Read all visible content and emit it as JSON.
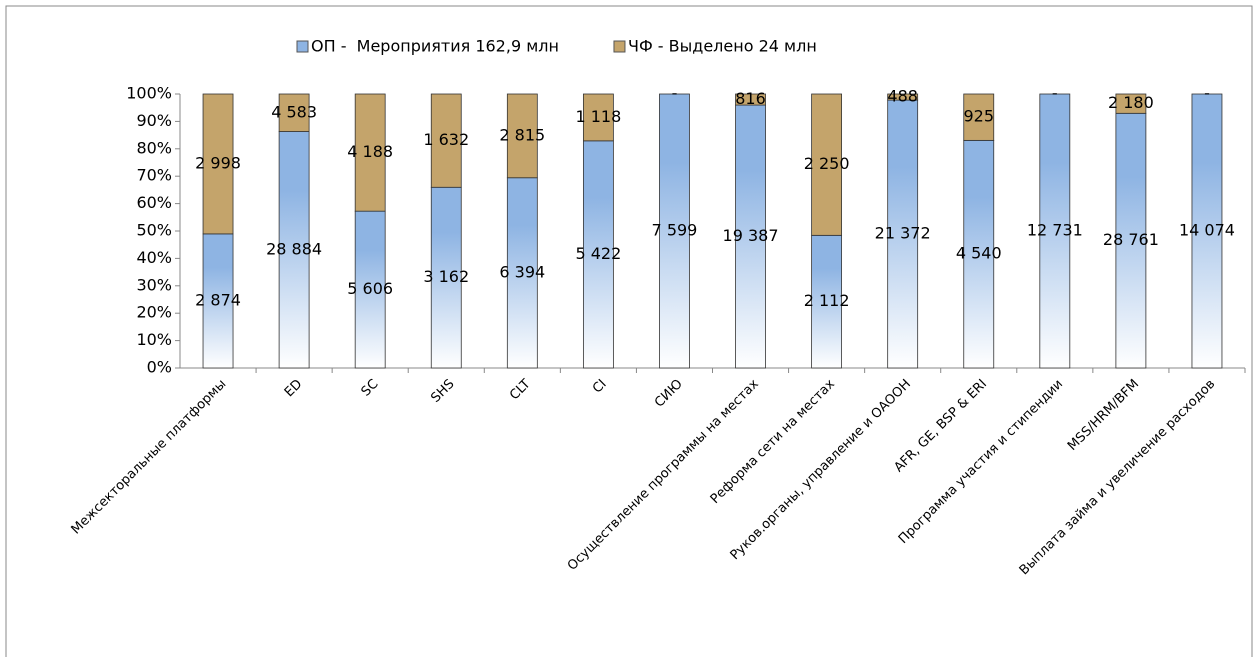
{
  "chart_data": {
    "type": "bar",
    "stacking": "percent",
    "categories": [
      "Межсекторальные платформы",
      "ED",
      "SC",
      "SHS",
      "CLT",
      "CI",
      "СИЮ",
      "Осуществление программы на местах",
      "Реформа сети на местах",
      "Руков.органы, управление и ОАООН",
      "AFR, GE, BSP & ERI",
      "Программа участия и стипендии",
      "MSS/HRM/BFM",
      "Выплата займа и увеличение расходов"
    ],
    "series": [
      {
        "name": "ОП -  Мероприятия 162,9 млн",
        "color": "#8eb4e3",
        "values": [
          2874,
          28884,
          5606,
          3162,
          6394,
          5422,
          7599,
          19387,
          2112,
          21372,
          4540,
          12731,
          28761,
          14074
        ],
        "value_labels": [
          "2 874",
          "28 884",
          "5 606",
          "3 162",
          "6 394",
          "5 422",
          "7 599",
          "19 387",
          "2 112",
          "21 372",
          "4 540",
          "12 731",
          "28 761",
          "14 074"
        ]
      },
      {
        "name": "ЧФ - Выделено 24 млн",
        "color": "#c4a46b",
        "values": [
          2998,
          4583,
          4188,
          1632,
          2815,
          1118,
          0,
          816,
          2250,
          488,
          925,
          0,
          2180,
          0
        ],
        "value_labels": [
          "2 998",
          "4 583",
          "4 188",
          "1 632",
          "2 815",
          "1 118",
          "-",
          "816",
          "2 250",
          "488",
          "925",
          "-",
          "2 180",
          "-"
        ]
      }
    ],
    "ylim": [
      0,
      100
    ],
    "yticks": [
      {
        "value": 0,
        "label": "0%"
      },
      {
        "value": 10,
        "label": "10%"
      },
      {
        "value": 20,
        "label": "20%"
      },
      {
        "value": 30,
        "label": "30%"
      },
      {
        "value": 40,
        "label": "40%"
      },
      {
        "value": 50,
        "label": "50%"
      },
      {
        "value": 60,
        "label": "60%"
      },
      {
        "value": 70,
        "label": "70%"
      },
      {
        "value": 80,
        "label": "80%"
      },
      {
        "value": 90,
        "label": "90%"
      },
      {
        "value": 100,
        "label": "100%"
      }
    ],
    "legend": "top"
  }
}
